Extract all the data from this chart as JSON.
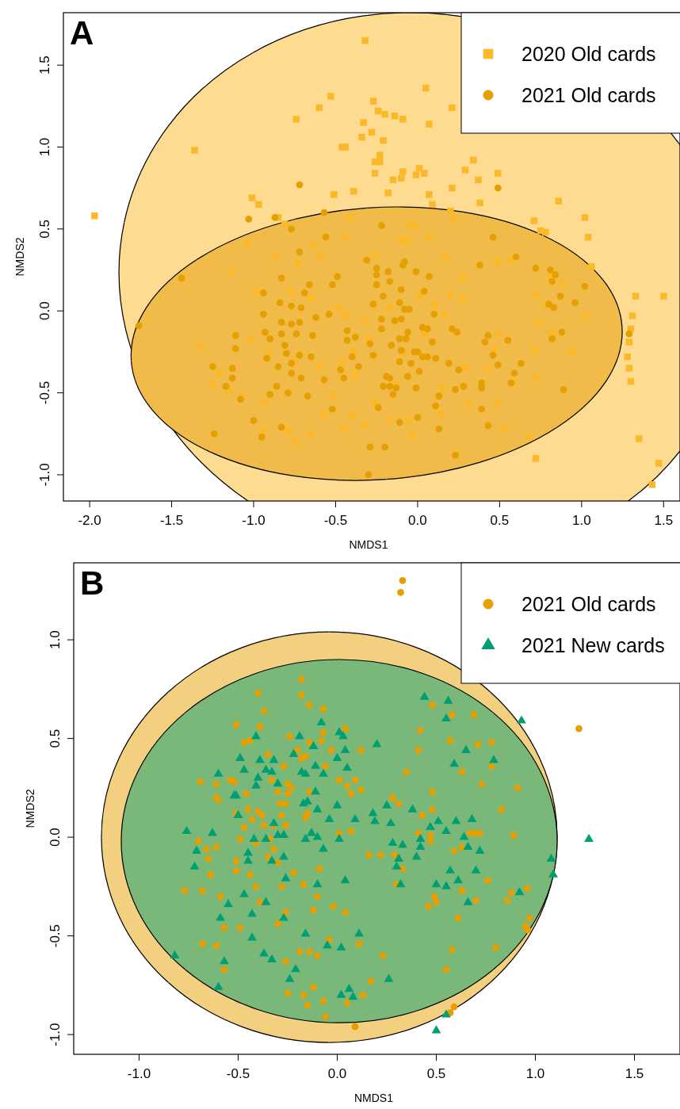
{
  "chart_data": [
    {
      "type": "scatter",
      "title": "A",
      "xlabel": "NMDS1",
      "ylabel": "NMDS2",
      "xlim": [
        -2.16,
        1.6
      ],
      "ylim": [
        -1.16,
        1.82
      ],
      "xticks": [
        {
          "value": -2,
          "label": "-2.0"
        },
        {
          "value": -1.5,
          "label": "-1.5"
        },
        {
          "value": -1,
          "label": "-1.0"
        },
        {
          "value": -0.5,
          "label": "-0.5"
        },
        {
          "value": 0,
          "label": "0.0"
        },
        {
          "value": 0.5,
          "label": "0.5"
        },
        {
          "value": 1,
          "label": "1.0"
        },
        {
          "value": 1.5,
          "label": "1.5"
        }
      ],
      "yticks": [
        {
          "value": -1,
          "label": "-1.0"
        },
        {
          "value": -0.5,
          "label": "-0.5"
        },
        {
          "value": 0,
          "label": "0.0"
        },
        {
          "value": 0.5,
          "label": "0.5"
        },
        {
          "value": 1,
          "label": "1.0"
        },
        {
          "value": 1.5,
          "label": "1.5"
        }
      ],
      "legend": "top right",
      "series": [
        {
          "name": "2020 Old cards",
          "marker": "square",
          "color": "#fbb829",
          "x": [
            -0.32,
            -1.97,
            -1.36,
            -0.53,
            -0.6,
            -0.74,
            -0.27,
            -0.24,
            -0.2,
            -0.14,
            -0.09,
            0.05,
            0.07,
            0.21,
            -0.33,
            -0.34,
            -0.28,
            -0.21,
            -0.46,
            -0.44,
            -0.23,
            -0.26,
            -0.23,
            -0.26,
            -0.15,
            -0.09,
            -0.01,
            0.01,
            0.04,
            -0.1,
            0.29,
            0.34,
            0.37,
            0.49,
            -0.18,
            -0.39,
            -0.51,
            0.07,
            0.09,
            0.21,
            0.38,
            0.86,
            1.02,
            1.04,
            -1.01,
            -0.97,
            -0.85,
            -0.81,
            0.2,
            0.22,
            0.71,
            0.75,
            0.78,
            -1.04,
            -0.41,
            -0.73,
            -0.87,
            -0.59,
            -0.44,
            -0.05,
            -0.02,
            -0.1,
            -0.06,
            0.07,
            0.17,
            0.57,
            -0.63,
            -0.26,
            1.47,
            1.35,
            0.72,
            1.3,
            1.5,
            1.33,
            1.31,
            1.3,
            1.29,
            1.28,
            1.29,
            1.06,
            1.02,
            0.94,
            0.72,
            0.74,
            0.72,
            0.68,
            0.71,
            0.49,
            0.49,
            0.49,
            0.53,
            0.28,
            0.28,
            0.2,
            0.29,
            0.31,
            0.14,
            -0.05,
            -0.03,
            -0.16,
            -0.32,
            -0.45,
            -0.4,
            -0.57,
            -0.65,
            -0.75,
            -0.94,
            -0.79,
            -0.93,
            -1.07,
            -1.15,
            -1.25,
            -1.21,
            -1.32,
            -1.02,
            -0.99,
            -1.14,
            -0.77,
            -0.65,
            -0.48,
            -0.44,
            -0.32,
            -0.17,
            0.01,
            0.11,
            0.16,
            0.04,
            -0.08,
            -0.3,
            -0.39,
            -0.46,
            -0.6,
            -0.75,
            -0.91,
            -0.52,
            -0.38,
            -0.26,
            -0.14,
            0.15,
            0.43,
            0.47,
            0.58,
            0.82,
            0.88,
            0.81,
            0.78,
            -1.43,
            1.43
          ],
          "values": [
            1.65,
            0.58,
            0.98,
            1.31,
            1.24,
            1.17,
            1.28,
            1.22,
            1.2,
            1.19,
            1.17,
            1.36,
            1.14,
            1.24,
            1.15,
            1.06,
            1.09,
            1.04,
            1.0,
            1.0,
            0.95,
            0.91,
            0.91,
            0.84,
            0.8,
            0.85,
            0.83,
            0.87,
            0.84,
            0.81,
            0.86,
            0.92,
            0.8,
            0.84,
            0.72,
            0.73,
            0.71,
            0.71,
            0.65,
            0.75,
            0.66,
            0.67,
            0.57,
            0.45,
            0.69,
            0.65,
            0.57,
            0.53,
            0.61,
            0.56,
            0.55,
            0.49,
            0.48,
            0.41,
            0.57,
            0.29,
            0.33,
            0.33,
            0.45,
            0.53,
            0.52,
            0.43,
            0.43,
            0.45,
            0.33,
            0.31,
            0.4,
            0.34,
            -0.93,
            -0.78,
            -0.9,
            -0.43,
            0.09,
            0.09,
            -0.03,
            -0.11,
            -0.19,
            -0.28,
            -0.35,
            0.27,
            -0.03,
            -0.25,
            0.1,
            -0.07,
            -0.41,
            -0.77,
            -0.24,
            0.3,
            -0.14,
            -0.56,
            -0.72,
            0.07,
            0.2,
            0.1,
            -0.35,
            -0.57,
            -0.63,
            -0.67,
            -0.76,
            -0.66,
            -0.7,
            -0.72,
            -0.64,
            -0.63,
            -0.75,
            -0.8,
            -0.73,
            -0.73,
            -0.56,
            -0.52,
            -0.49,
            -0.45,
            -0.38,
            -0.21,
            -0.17,
            0.11,
            0.24,
            0.12,
            0.08,
            0.02,
            -0.03,
            -0.05,
            0.02,
            0.09,
            0.04,
            -0.02,
            -0.14,
            -0.25,
            -0.17,
            -0.25,
            -0.31,
            -0.34,
            -0.31,
            -0.25,
            -0.51,
            -0.39,
            -0.56,
            -0.45,
            -0.47,
            -0.35,
            -0.23,
            -0.44,
            -0.13,
            0.17,
            0.21,
            0.03,
            0.2,
            -1.06
          ]
        },
        {
          "name": "2021 Old cards",
          "marker": "circle",
          "color": "#e69f00",
          "x": [
            -0.72,
            0.49,
            -1.03,
            -0.57,
            -0.22,
            0.46,
            -0.56,
            -0.77,
            -0.72,
            -0.31,
            -0.09,
            0.6,
            -1.44,
            -1.7,
            0.38,
            0.72,
            0.81,
            0.84,
            0.82,
            1.02,
            0.96,
            0.87,
            0.8,
            0.83,
            0.88,
            0.82,
            1.29,
            0.89,
            0.63,
            0.59,
            0.57,
            0.55,
            0.43,
            0.41,
            0.46,
            0.49,
            0.39,
            0.39,
            0.43,
            0.39,
            0.23,
            0.21,
            0.24,
            0.19,
            0.25,
            0.28,
            0.23,
            0.13,
            0.11,
            0.13,
            0.0,
            -0.11,
            -0.24,
            -0.29,
            -0.2,
            -0.3,
            -0.52,
            -0.83,
            -0.95,
            -1.0,
            -1.24,
            -1.08,
            -1.17,
            -1.13,
            -1.25,
            -1.13,
            -1.11,
            -1.11,
            -0.9,
            -0.83,
            -0.94,
            -0.94,
            -0.93,
            -0.9,
            -0.92,
            -0.84,
            -0.77,
            -0.83,
            -0.72,
            -0.77,
            -0.83,
            -0.74,
            -0.81,
            -0.8,
            -0.77,
            -0.77,
            -0.71,
            -0.85,
            -0.86,
            -0.79,
            -0.67,
            -0.72,
            -0.65,
            -0.64,
            -0.62,
            -0.71,
            -0.69,
            -0.66,
            -0.54,
            -0.52,
            -0.49,
            -0.43,
            -0.38,
            -0.43,
            -0.4,
            -0.45,
            -0.47,
            -0.57,
            -0.36,
            -0.27,
            -0.27,
            -0.25,
            -0.25,
            -0.25,
            -0.18,
            -0.17,
            -0.21,
            -0.22,
            -0.22,
            -0.29,
            -0.16,
            -0.19,
            -0.17,
            -0.21,
            -0.17,
            -0.15,
            -0.13,
            -0.11,
            -0.1,
            -0.11,
            -0.07,
            -0.14,
            -0.1,
            -0.11,
            -0.08,
            -0.05,
            -0.1,
            -0.08,
            -0.06,
            -0.02,
            0.0,
            -0.04,
            -0.06,
            -0.01,
            0.01,
            0.03,
            0.06,
            0.04,
            -0.01,
            0.07,
            0.1,
            0.09,
            0.03,
            0.06,
            0.11,
            -0.87
          ],
          "values": [
            0.77,
            0.75,
            0.56,
            0.6,
            0.52,
            0.45,
            0.45,
            0.5,
            0.36,
            0.31,
            0.28,
            0.33,
            0.2,
            -0.09,
            0.28,
            0.26,
            0.25,
            0.22,
            0.18,
            0.15,
            0.05,
            0.09,
            0.04,
            0.02,
            -0.13,
            -0.17,
            -0.14,
            -0.48,
            -0.32,
            -0.38,
            -0.44,
            -0.18,
            -0.15,
            -0.19,
            -0.27,
            -0.33,
            -0.44,
            -0.47,
            -0.7,
            -0.6,
            -0.88,
            -0.11,
            -0.13,
            -0.32,
            -0.36,
            -0.46,
            -0.48,
            -0.52,
            -0.58,
            -0.72,
            -0.65,
            -0.68,
            -0.59,
            -0.83,
            -0.83,
            -1.0,
            -0.6,
            -0.71,
            -0.77,
            -0.67,
            -0.75,
            -0.54,
            -0.46,
            -0.41,
            -0.34,
            -0.35,
            -0.23,
            -0.15,
            -0.51,
            0.2,
            0.11,
            -0.02,
            -0.13,
            -0.17,
            -0.29,
            0.05,
            0.03,
            -0.07,
            -0.07,
            -0.08,
            -0.14,
            -0.14,
            -0.21,
            -0.26,
            -0.32,
            -0.38,
            -0.41,
            -0.34,
            -0.46,
            -0.5,
            -0.52,
            -0.27,
            -0.28,
            -0.15,
            -0.04,
            0.02,
            0.11,
            0.16,
            -0.02,
            0.16,
            0.21,
            -0.12,
            -0.16,
            -0.18,
            -0.28,
            -0.41,
            -0.36,
            -0.42,
            -0.34,
            -0.27,
            0.04,
            0.22,
            0.16,
            0.26,
            0.24,
            0.18,
            0.09,
            -0.05,
            -0.11,
            -0.2,
            -0.21,
            -0.4,
            -0.41,
            -0.46,
            -0.46,
            -0.51,
            -0.47,
            -0.31,
            -0.24,
            -0.17,
            -0.17,
            -0.06,
            -0.05,
            0.05,
            0.01,
            0.01,
            0.13,
            0.3,
            -0.13,
            -0.25,
            -0.25,
            -0.32,
            -0.4,
            -0.47,
            -0.37,
            -0.1,
            -0.11,
            0.12,
            0.24,
            0.21,
            -0.02,
            -0.19,
            -0.28,
            -0.28,
            -0.29,
            0.57
          ]
        }
      ]
    },
    {
      "type": "scatter",
      "title": "B",
      "xlabel": "NMDS1",
      "ylabel": "NMDS2",
      "xlim": [
        -1.33,
        1.73
      ],
      "ylim": [
        -1.1,
        1.39
      ],
      "xticks": [
        {
          "value": -1,
          "label": "-1.0"
        },
        {
          "value": -0.5,
          "label": "-0.5"
        },
        {
          "value": 0,
          "label": "0.0"
        },
        {
          "value": 0.5,
          "label": "0.5"
        },
        {
          "value": 1,
          "label": "1.0"
        },
        {
          "value": 1.5,
          "label": "1.5"
        }
      ],
      "yticks": [
        {
          "value": -1,
          "label": "-1.0"
        },
        {
          "value": -0.5,
          "label": "-0.5"
        },
        {
          "value": 0,
          "label": "0.0"
        },
        {
          "value": 0.5,
          "label": "0.5"
        },
        {
          "value": 1,
          "label": "1.0"
        }
      ],
      "legend": "top right",
      "series": [
        {
          "name": "2021 Old cards",
          "marker": "circle",
          "color": "#e69f00",
          "x": [
            0.33,
            0.32,
            1.22,
            -0.18,
            -0.4,
            -0.18,
            -0.14,
            -0.07,
            -0.37,
            -0.51,
            -0.39,
            0.04,
            -0.07,
            -0.47,
            -0.44,
            -0.24,
            -0.14,
            -0.08,
            -0.2,
            -0.35,
            -0.18,
            -0.16,
            -0.03,
            0.12,
            -0.27,
            -0.06,
            -0.33,
            -0.69,
            -0.61,
            -0.54,
            -0.52,
            -0.25,
            -0.23,
            0.01,
            0.05,
            0.09,
            0.12,
            0.07,
            -0.14,
            -0.25,
            -0.3,
            -0.46,
            -0.6,
            0.48,
            0.58,
            0.69,
            0.42,
            0.57,
            0.71,
            0.78,
            0.41,
            0.78,
            0.63,
            0.35,
            0.73,
            0.91,
            0.48,
            0.28,
            0.31,
            0.83,
            0.89,
            0.48,
            0.43,
            0.41,
            0.47,
            0.47,
            0.67,
            0.7,
            0.72,
            0.63,
            0.59,
            0.76,
            0.63,
            0.88,
            0.96,
            0.86,
            0.7,
            0.49,
            0.5,
            0.46,
            0.61,
            0.97,
            0.95,
            0.96,
            0.8,
            0.58,
            0.55,
            0.59,
            0.57,
            0.09,
            0.23,
            0.17,
            0.16,
            0.22,
            0.29,
            0.33,
            0.3,
            0.01,
            0.07,
            -0.09,
            -0.1,
            -0.17,
            -0.22,
            -0.28,
            -0.26,
            -0.3,
            -0.12,
            -0.02,
            0.04,
            0.11,
            -0.04,
            -0.19,
            -0.14,
            -0.1,
            -0.26,
            -0.12,
            -0.17,
            -0.25,
            -0.15,
            -0.07,
            -0.06,
            0.05,
            0.13,
            -0.68,
            -0.61,
            -0.57,
            -0.57,
            -0.49,
            -0.59,
            -0.68,
            -0.77,
            -0.64,
            -0.65,
            -0.66,
            -0.61,
            -0.7,
            -0.51,
            -0.51,
            -0.49,
            -0.47,
            -0.44,
            -0.41,
            -0.39,
            -0.3,
            -0.35,
            -0.32,
            -0.34,
            -0.41,
            -0.37,
            -0.32,
            -0.26,
            -0.43,
            -0.38,
            -0.45,
            -0.4,
            -0.51,
            -0.28,
            -0.29,
            -0.26,
            -0.25,
            -0.16,
            -0.15,
            -0.61
          ],
          "values": [
            1.3,
            1.24,
            0.55,
            0.8,
            0.73,
            0.72,
            0.67,
            0.65,
            0.64,
            0.57,
            0.56,
            0.55,
            0.53,
            0.48,
            0.49,
            0.51,
            0.48,
            0.49,
            0.44,
            0.42,
            0.4,
            0.41,
            0.44,
            0.44,
            0.36,
            0.36,
            0.29,
            0.28,
            0.27,
            0.29,
            0.28,
            0.27,
            0.25,
            0.29,
            0.26,
            0.29,
            0.24,
            0.22,
            0.23,
            0.22,
            0.23,
            0.22,
            0.19,
            0.67,
            0.62,
            0.62,
            0.54,
            0.49,
            0.47,
            0.48,
            0.44,
            0.36,
            0.33,
            0.33,
            0.27,
            0.25,
            0.23,
            0.2,
            0.17,
            0.14,
            0.01,
            0.14,
            0.11,
            0.02,
            0.01,
            -0.02,
            0.02,
            0.02,
            0.02,
            -0.05,
            -0.07,
            -0.22,
            -0.27,
            -0.28,
            -0.26,
            -0.32,
            -0.32,
            -0.3,
            -0.33,
            -0.35,
            -0.41,
            -0.41,
            -0.45,
            -0.47,
            -0.56,
            -0.57,
            -0.67,
            -0.86,
            -0.89,
            -0.96,
            -0.6,
            -0.73,
            -0.09,
            -0.09,
            -0.09,
            -0.16,
            -0.24,
            0.02,
            0.03,
            -0.16,
            -0.3,
            -0.24,
            -0.18,
            -0.25,
            -0.38,
            -0.44,
            -0.37,
            -0.35,
            -0.38,
            -0.54,
            -0.52,
            -0.58,
            -0.58,
            -0.6,
            -0.63,
            -0.76,
            -0.8,
            -0.79,
            -0.85,
            -0.83,
            -0.91,
            -0.84,
            -0.8,
            -0.54,
            -0.55,
            -0.67,
            -0.46,
            -0.46,
            -0.3,
            -0.27,
            -0.27,
            -0.19,
            -0.11,
            -0.06,
            -0.05,
            -0.02,
            -0.17,
            -0.12,
            -0.01,
            0.05,
            -0.19,
            -0.25,
            -0.33,
            -0.13,
            -0.1,
            -0.06,
            -0.01,
            -0.03,
            0.06,
            0.06,
            0.06,
            0.09,
            0.11,
            0.14,
            0.13,
            0.12,
            0.11,
            0.17,
            0.17,
            0.22,
            0.1,
            0.12,
            0.2
          ]
        },
        {
          "name": "2021 New cards",
          "marker": "triangle",
          "color": "#009e73",
          "x": [
            0.93,
            0.44,
            0.56,
            0.55,
            -0.08,
            -0.41,
            -0.19,
            0.01,
            0.03,
            -0.12,
            0.2,
            0.04,
            -0.22,
            0.0,
            0.65,
            0.79,
            0.59,
            -0.49,
            -0.39,
            -0.32,
            -0.47,
            -0.36,
            -0.33,
            -0.18,
            -0.16,
            -0.11,
            0.05,
            -0.07,
            -0.6,
            -0.4,
            -0.3,
            -0.41,
            -0.51,
            -0.11,
            -0.17,
            -0.15,
            1.27,
            1.08,
            1.09,
            -0.76,
            -0.63,
            -0.71,
            -0.72,
            -0.52,
            -0.5,
            -0.45,
            -0.45,
            -0.42,
            -0.36,
            -0.3,
            -0.27,
            -0.32,
            -0.33,
            -0.27,
            -0.26,
            -0.16,
            -0.13,
            -0.1,
            -0.1,
            -0.04,
            -0.07,
            -0.1,
            0.01,
            0.0,
            0.09,
            0.04,
            0.18,
            0.19,
            0.25,
            0.27,
            0.28,
            0.33,
            0.31,
            0.3,
            0.32,
            0.38,
            0.42,
            0.42,
            0.4,
            0.47,
            0.51,
            0.55,
            0.6,
            0.68,
            0.64,
            0.66,
            0.72,
            0.7,
            0.57,
            0.61,
            0.55,
            0.5,
            0.66,
            0.92,
            -0.55,
            -0.47,
            -0.36,
            -0.43,
            -0.59,
            -0.27,
            -0.43,
            -0.82,
            -0.57,
            -0.6,
            -0.37,
            -0.33,
            -0.21,
            -0.24,
            -0.16,
            -0.05,
            0.02,
            0.11,
            0.02,
            0.06,
            0.08,
            0.26,
            0.55,
            0.5
          ],
          "values": [
            0.59,
            0.71,
            0.69,
            0.6,
            0.58,
            0.51,
            0.51,
            0.53,
            0.51,
            0.46,
            0.47,
            0.44,
            0.42,
            0.4,
            0.44,
            0.39,
            0.37,
            0.4,
            0.39,
            0.39,
            0.34,
            0.34,
            0.33,
            0.33,
            0.32,
            0.36,
            0.35,
            0.32,
            0.32,
            0.3,
            0.27,
            0.26,
            0.21,
            0.23,
            0.17,
            0.18,
            -0.01,
            -0.11,
            -0.19,
            0.03,
            0.02,
            -0.07,
            -0.15,
            0.21,
            0.11,
            -0.08,
            -0.12,
            -0.01,
            -0.01,
            0.01,
            0.01,
            0.07,
            -0.12,
            -0.1,
            -0.21,
            -0.01,
            0.02,
            0.0,
            0.14,
            0.09,
            -0.06,
            -0.24,
            -0.01,
            0.16,
            0.09,
            -0.22,
            0.12,
            0.08,
            0.16,
            0.07,
            -0.03,
            -0.04,
            -0.11,
            -0.15,
            -0.24,
            0.14,
            -0.01,
            -0.05,
            -0.1,
            0.05,
            0.08,
            0.03,
            0.08,
            0.09,
            0.0,
            -0.05,
            -0.07,
            -0.17,
            -0.17,
            -0.22,
            -0.25,
            -0.24,
            -0.33,
            -0.28,
            -0.34,
            -0.29,
            -0.33,
            -0.39,
            -0.41,
            -0.41,
            -0.51,
            -0.6,
            -0.63,
            -0.76,
            -0.59,
            -0.62,
            -0.67,
            -0.72,
            -0.49,
            -0.55,
            -0.56,
            -0.49,
            -0.8,
            -0.77,
            -0.81,
            -0.72,
            -0.9,
            -0.98
          ]
        }
      ]
    }
  ]
}
